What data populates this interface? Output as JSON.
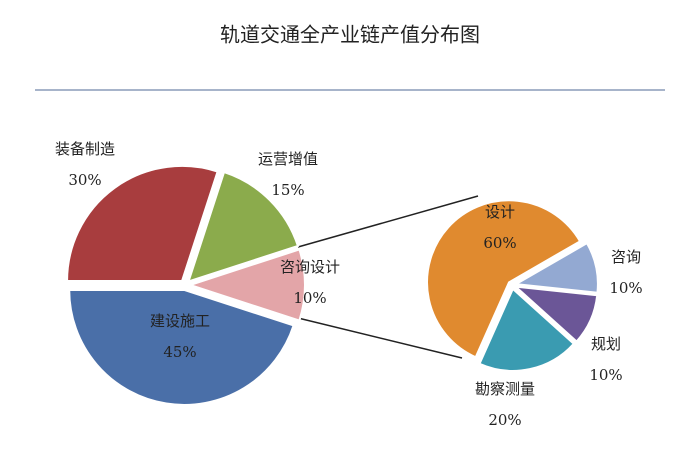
{
  "chart_data": [
    {
      "type": "pie",
      "title": "轨道交通全产业链产值分布图",
      "categories": [
        "建设施工",
        "装备制造",
        "运营增值",
        "咨询设计"
      ],
      "values": [
        45,
        30,
        15,
        10
      ],
      "value_labels": [
        "45%",
        "30%",
        "15%",
        "10%"
      ],
      "colors": [
        "#4a6fa8",
        "#a83d3e",
        "#8bab4c",
        "#e3a5a8"
      ]
    },
    {
      "type": "pie",
      "categories": [
        "设计",
        "咨询",
        "规划",
        "勘察测量"
      ],
      "values": [
        60,
        10,
        10,
        20
      ],
      "value_labels": [
        "60%",
        "10%",
        "10%",
        "20%"
      ],
      "colors": [
        "#e08a2f",
        "#93a9d2",
        "#6b5697",
        "#3a9bb1"
      ]
    }
  ]
}
